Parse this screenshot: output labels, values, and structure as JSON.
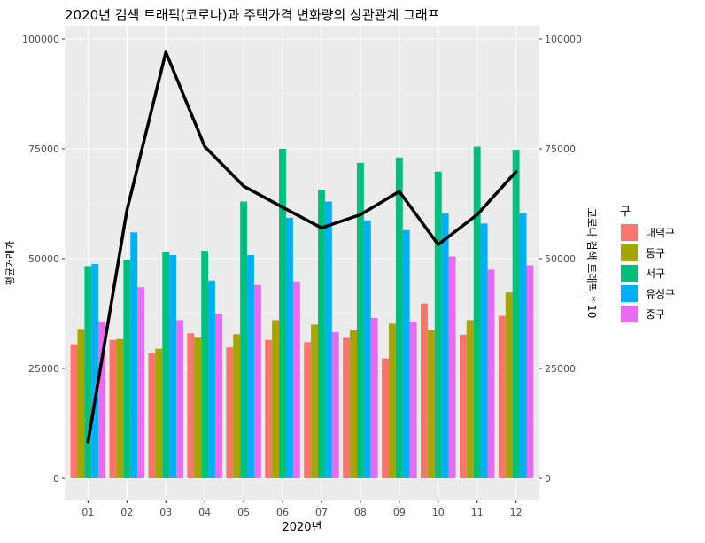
{
  "chart_data": {
    "type": "bar",
    "title": "2020년 검색 트래픽(코로나)과 주택가격 변화량의 상관관계 그래프",
    "xlabel": "2020년",
    "ylabel": "평균거래가",
    "y2label": "코로나 검색 트래픽 * 10",
    "ylim": [
      0,
      100000
    ],
    "y2lim": [
      0,
      100000
    ],
    "yticks": [
      "0",
      "25000",
      "50000",
      "75000",
      "100000"
    ],
    "y2ticks": [
      "0",
      "25000",
      "50000",
      "75000",
      "100000"
    ],
    "ytick_values": [
      0,
      25000,
      50000,
      75000,
      100000
    ],
    "grid": true,
    "legend_position": "right",
    "legend_title": "구",
    "categories": [
      "01",
      "02",
      "03",
      "04",
      "05",
      "06",
      "07",
      "08",
      "09",
      "10",
      "11",
      "12"
    ],
    "series": [
      {
        "name": "대덕구",
        "color": "#F8766D",
        "values": [
          30500,
          31500,
          28500,
          33000,
          29800,
          31500,
          31000,
          32000,
          27300,
          39800,
          32700,
          37000
        ]
      },
      {
        "name": "동구",
        "color": "#A3A500",
        "values": [
          34000,
          31700,
          29500,
          32000,
          32800,
          36000,
          35000,
          33700,
          35200,
          33700,
          36000,
          42300
        ]
      },
      {
        "name": "서구",
        "color": "#00BF7D",
        "values": [
          48300,
          49800,
          51500,
          51800,
          63000,
          75000,
          65700,
          71800,
          73000,
          69800,
          75500,
          74800
        ]
      },
      {
        "name": "유성구",
        "color": "#00B0F6",
        "values": [
          48800,
          56000,
          50800,
          45000,
          50800,
          59300,
          63000,
          58700,
          56500,
          60300,
          58000,
          60300
        ]
      },
      {
        "name": "중구",
        "color": "#E76BF3",
        "values": [
          35700,
          43500,
          36000,
          37500,
          44000,
          44800,
          33300,
          36500,
          35700,
          50500,
          47500,
          48500
        ]
      }
    ],
    "line": {
      "color": "#000000",
      "values": [
        8300,
        61000,
        97000,
        75500,
        66500,
        61700,
        57000,
        60000,
        65300,
        53200,
        60000,
        69800
      ]
    }
  }
}
